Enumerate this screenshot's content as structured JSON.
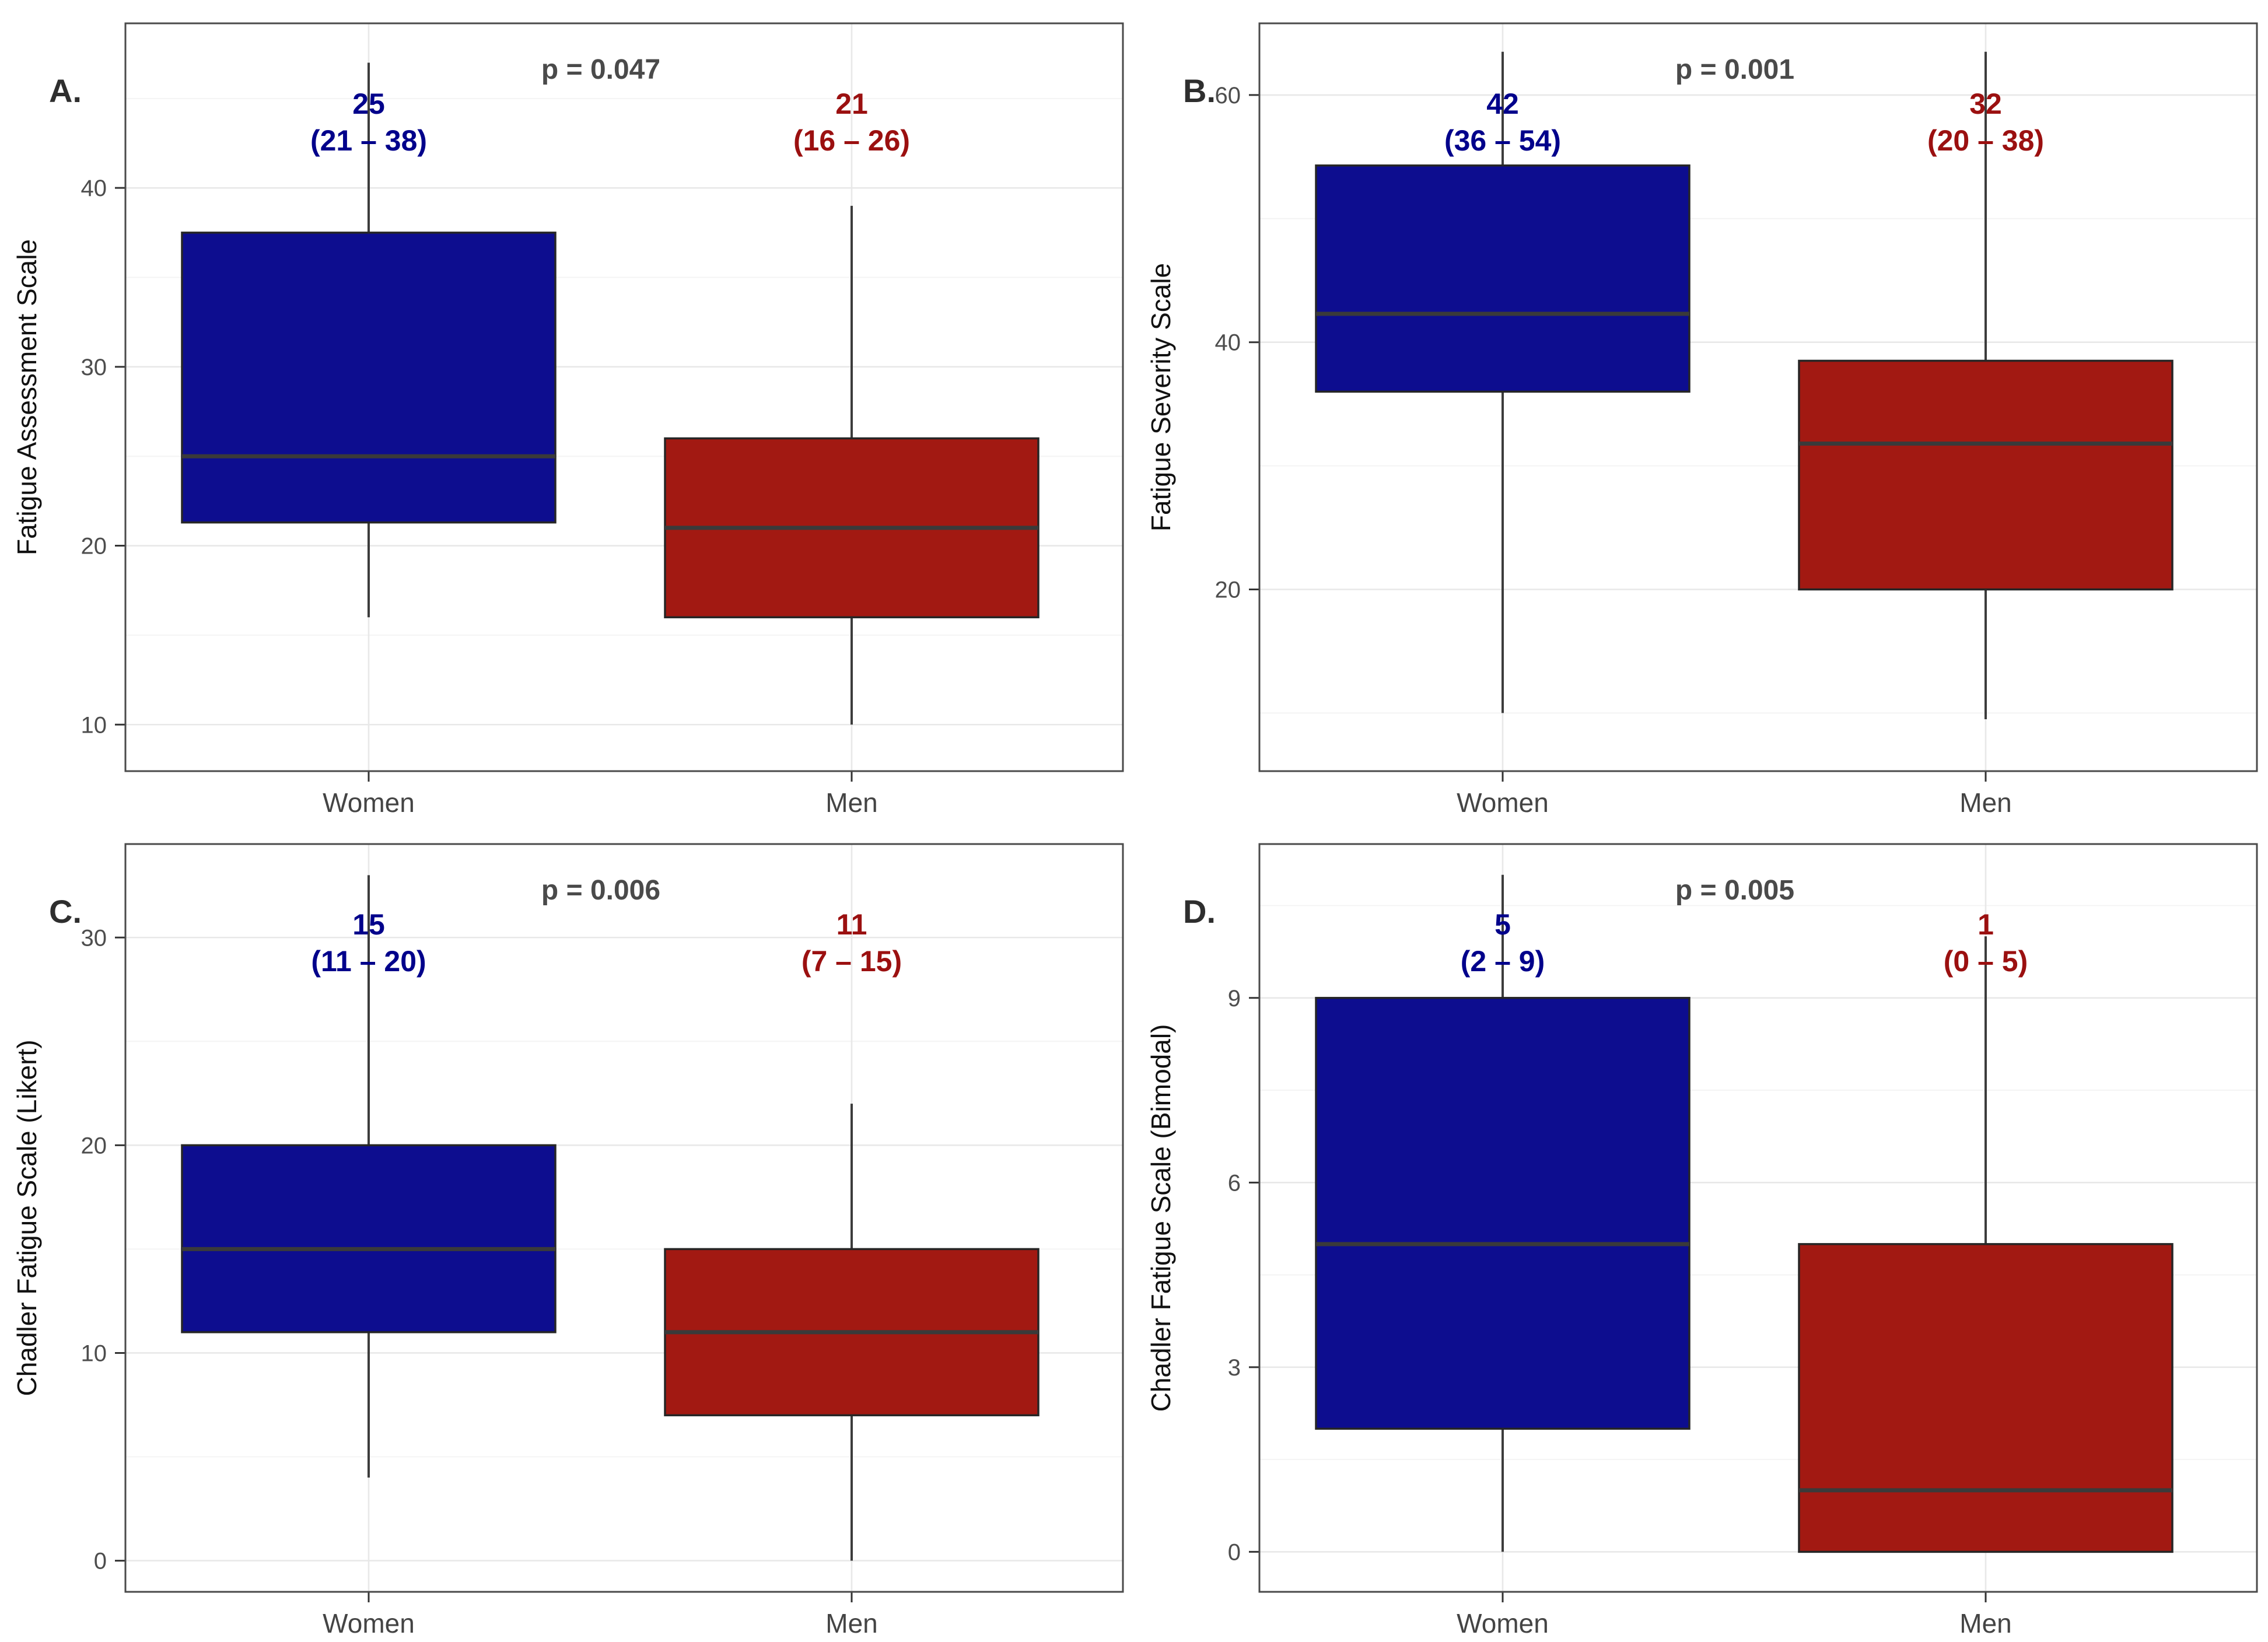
{
  "colors": {
    "box_blue": "#0D0D8F",
    "box_red": "#A21912",
    "text_blue": "#00008B",
    "text_red": "#9B1010",
    "p_text": "#4A4A4A",
    "axis_text": "#4D4D4D",
    "axis_title": "#111111",
    "panel_tag": "#2E2E2E",
    "category_text": "#444444",
    "grid_major": "#E8E8E8",
    "grid_minor": "#F4F4F4",
    "panel_border": "#4A4A4A",
    "whisker": "#3C3C3C",
    "median": "#3A3A3A",
    "box_stroke": "#262626",
    "background": "#FFFFFF"
  },
  "chart_data": {
    "type": "boxplot-grid",
    "layout": "2x2",
    "categories": [
      "Women",
      "Men"
    ],
    "panels": [
      {
        "id": "A",
        "tag": "A.",
        "p_label": "p = 0.047",
        "ylabel": "Fatigue Assessment Scale",
        "ticks": [
          10,
          20,
          30,
          40
        ],
        "minor_ticks": [
          15,
          25,
          35,
          45
        ],
        "ylim": [
          7.4,
          49.2
        ],
        "groups": [
          {
            "category": "Women",
            "color_key": "blue",
            "annotation_line1": "25",
            "annotation_line2": "(21 – 38)",
            "stats": {
              "whisker_low": 16,
              "q1": 21.3,
              "median": 25,
              "q3": 37.5,
              "whisker_high": 47
            }
          },
          {
            "category": "Men",
            "color_key": "red",
            "annotation_line1": "21",
            "annotation_line2": "(16 – 26)",
            "stats": {
              "whisker_low": 10,
              "q1": 16,
              "median": 21,
              "q3": 26,
              "whisker_high": 39
            }
          }
        ]
      },
      {
        "id": "B",
        "tag": "B.",
        "p_label": "p = 0.001",
        "ylabel": "Fatigue Severity Scale",
        "ticks": [
          20,
          40,
          60
        ],
        "minor_ticks": [
          10,
          30,
          50
        ],
        "ylim": [
          5.3,
          65.8
        ],
        "groups": [
          {
            "category": "Women",
            "color_key": "blue",
            "annotation_line1": "42",
            "annotation_line2": "(36 – 54)",
            "stats": {
              "whisker_low": 10,
              "q1": 36,
              "median": 42.3,
              "q3": 54.3,
              "whisker_high": 63.5
            }
          },
          {
            "category": "Men",
            "color_key": "red",
            "annotation_line1": "32",
            "annotation_line2": "(20 – 38)",
            "stats": {
              "whisker_low": 9.5,
              "q1": 20,
              "median": 31.8,
              "q3": 38.5,
              "whisker_high": 63.5
            }
          }
        ]
      },
      {
        "id": "C",
        "tag": "C.",
        "p_label": "p = 0.006",
        "ylabel": "Chadler Fatigue Scale (Likert)",
        "ticks": [
          0,
          10,
          20,
          30
        ],
        "minor_ticks": [
          5,
          15,
          25
        ],
        "ylim": [
          -1.5,
          34.5
        ],
        "groups": [
          {
            "category": "Women",
            "color_key": "blue",
            "annotation_line1": "15",
            "annotation_line2": "(11 – 20)",
            "stats": {
              "whisker_low": 4,
              "q1": 11,
              "median": 15,
              "q3": 20,
              "whisker_high": 33
            }
          },
          {
            "category": "Men",
            "color_key": "red",
            "annotation_line1": "11",
            "annotation_line2": "(7 – 15)",
            "stats": {
              "whisker_low": 0,
              "q1": 7,
              "median": 11,
              "q3": 15,
              "whisker_high": 22
            }
          }
        ]
      },
      {
        "id": "D",
        "tag": "D.",
        "p_label": "p = 0.005",
        "ylabel": "Chadler Fatigue Scale (Bimodal)",
        "ticks": [
          0,
          3,
          6,
          9
        ],
        "minor_ticks": [
          1.5,
          4.5,
          7.5,
          10.5
        ],
        "ylim": [
          -0.65,
          11.5
        ],
        "groups": [
          {
            "category": "Women",
            "color_key": "blue",
            "annotation_line1": "5",
            "annotation_line2": "(2 – 9)",
            "stats": {
              "whisker_low": 0,
              "q1": 2,
              "median": 5,
              "q3": 9,
              "whisker_high": 11
            }
          },
          {
            "category": "Men",
            "color_key": "red",
            "annotation_line1": "1",
            "annotation_line2": "(0 – 5)",
            "stats": {
              "whisker_low": 0,
              "q1": 0,
              "median": 1,
              "q3": 5,
              "whisker_high": 10
            }
          }
        ]
      }
    ]
  }
}
